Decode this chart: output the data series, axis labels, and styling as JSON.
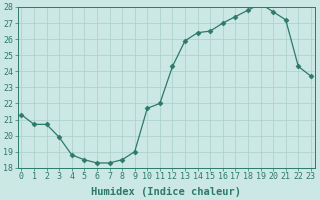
{
  "x": [
    0,
    1,
    2,
    3,
    4,
    5,
    6,
    7,
    8,
    9,
    10,
    11,
    12,
    13,
    14,
    15,
    16,
    17,
    18,
    19,
    20,
    21,
    22,
    23
  ],
  "y": [
    21.3,
    20.7,
    20.7,
    19.9,
    18.8,
    18.5,
    18.3,
    18.3,
    18.5,
    19.0,
    21.7,
    22.0,
    24.3,
    25.9,
    26.4,
    26.5,
    27.0,
    27.4,
    27.8,
    28.2,
    27.7,
    27.2,
    24.3,
    23.7
  ],
  "line_color": "#2d7a6a",
  "marker": "D",
  "marker_size": 2.5,
  "background_color": "#cce8e4",
  "grid_color": "#aacfca",
  "xlabel": "Humidex (Indice chaleur)",
  "ylim": [
    18,
    28
  ],
  "xlim": [
    -0.3,
    23.3
  ],
  "yticks": [
    18,
    19,
    20,
    21,
    22,
    23,
    24,
    25,
    26,
    27,
    28
  ],
  "xticks": [
    0,
    1,
    2,
    3,
    4,
    5,
    6,
    7,
    8,
    9,
    10,
    11,
    12,
    13,
    14,
    15,
    16,
    17,
    18,
    19,
    20,
    21,
    22,
    23
  ],
  "tick_label_fontsize": 6,
  "xlabel_fontsize": 7.5
}
